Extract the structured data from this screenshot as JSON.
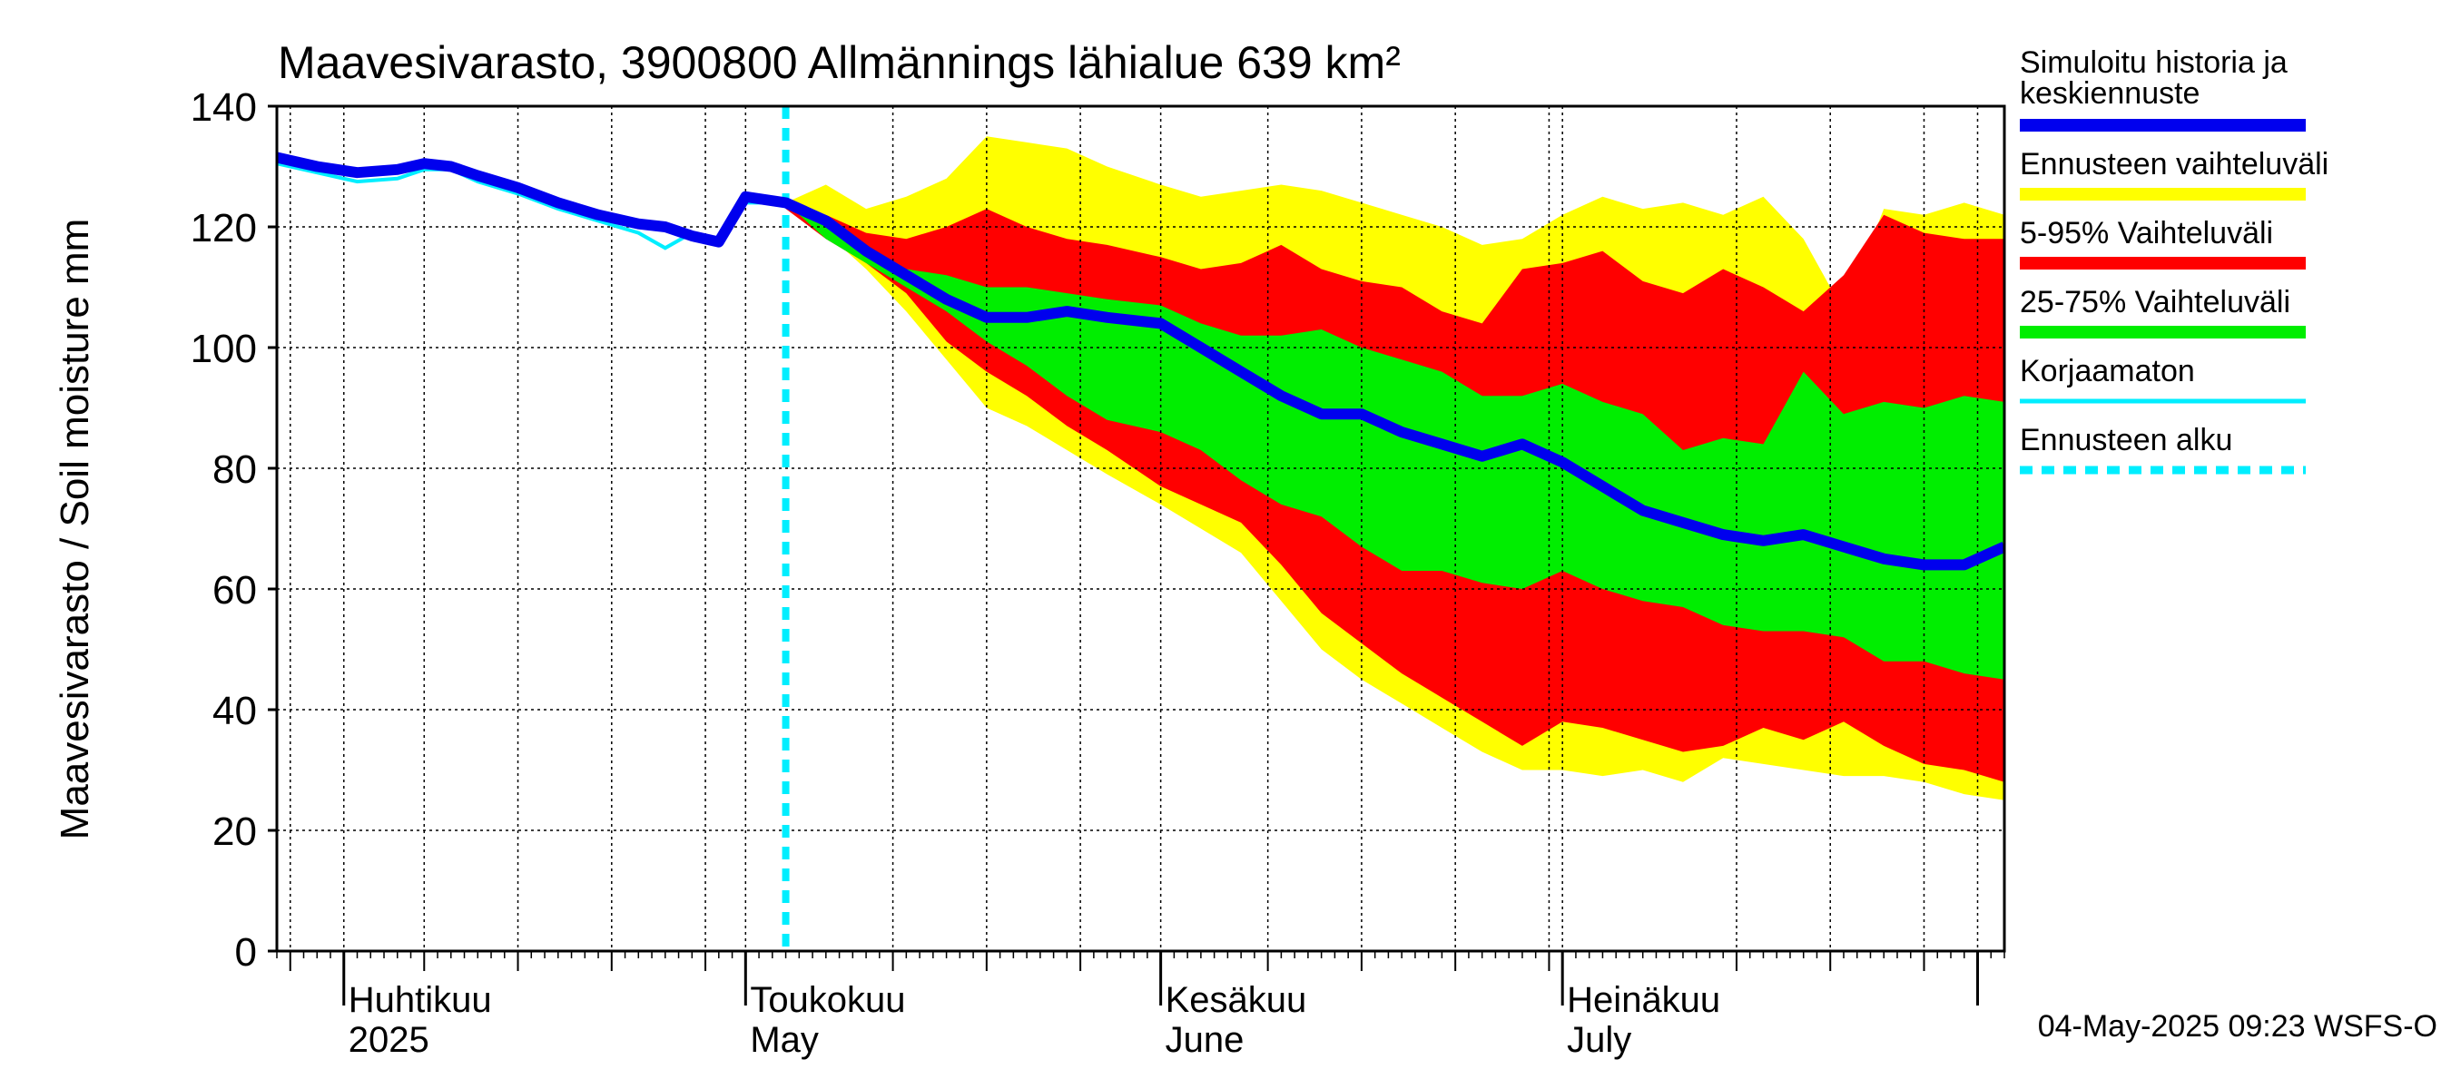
{
  "chart_data": {
    "type": "area",
    "title": "Maavesivarasto, 3900800 Allmännings lähialue 639 km²",
    "ylabel": "Maavesivarasto / Soil moisture   mm",
    "ylim": [
      0,
      140
    ],
    "yticks": [
      "0",
      "20",
      "40",
      "60",
      "80",
      "100",
      "120",
      "140"
    ],
    "xlim": [
      "2025-03-27",
      "2025-08-03"
    ],
    "forecast_start": "2025-05-04",
    "grid": true,
    "months": [
      {
        "date": "2025-04-01",
        "fi": "Huhtikuu",
        "en": "2025"
      },
      {
        "date": "2025-05-01",
        "fi": "Toukokuu",
        "en": "May"
      },
      {
        "date": "2025-06-01",
        "fi": "Kesäkuu",
        "en": "June"
      },
      {
        "date": "2025-07-01",
        "fi": "Heinäkuu",
        "en": "July"
      },
      {
        "date": "2025-08-01",
        "fi": "",
        "en": ""
      }
    ],
    "colors": {
      "history": "#0000ee",
      "uncorrected": "#00eeff",
      "range": "#ffff00",
      "p5_95": "#ff0000",
      "p25_75": "#00ee00",
      "forecast_start": "#00eeff"
    },
    "legend": [
      {
        "key": "history",
        "label": "Simuloitu historia ja",
        "label2": "keskiennuste",
        "color": "#0000ee",
        "style": "thick"
      },
      {
        "key": "range",
        "label": "Ennusteen vaihteluväli",
        "color": "#ffff00",
        "style": "thick"
      },
      {
        "key": "p5_95",
        "label": "5-95% Vaihteluväli",
        "color": "#ff0000",
        "style": "thick"
      },
      {
        "key": "p25_75",
        "label": "25-75% Vaihteluväli",
        "color": "#00ee00",
        "style": "thick"
      },
      {
        "key": "uncorrected",
        "label": "Korjaamaton",
        "color": "#00eeff",
        "style": "thin"
      },
      {
        "key": "forecast_start",
        "label": "Ennusteen alku",
        "color": "#00eeff",
        "style": "dashed"
      }
    ],
    "series": [
      {
        "name": "Simuloitu historia ja keskiennuste",
        "x": [
          "2025-03-27",
          "2025-03-30",
          "2025-04-02",
          "2025-04-05",
          "2025-04-07",
          "2025-04-09",
          "2025-04-11",
          "2025-04-14",
          "2025-04-17",
          "2025-04-20",
          "2025-04-23",
          "2025-04-25",
          "2025-04-27",
          "2025-04-29",
          "2025-05-01",
          "2025-05-04",
          "2025-05-07",
          "2025-05-10",
          "2025-05-13",
          "2025-05-16",
          "2025-05-19",
          "2025-05-22",
          "2025-05-25",
          "2025-05-28",
          "2025-06-01",
          "2025-06-04",
          "2025-06-07",
          "2025-06-10",
          "2025-06-13",
          "2025-06-16",
          "2025-06-19",
          "2025-06-22",
          "2025-06-25",
          "2025-06-28",
          "2025-07-01",
          "2025-07-04",
          "2025-07-07",
          "2025-07-10",
          "2025-07-13",
          "2025-07-16",
          "2025-07-19",
          "2025-07-22",
          "2025-07-25",
          "2025-07-28",
          "2025-07-31",
          "2025-08-03"
        ],
        "values": [
          131.5,
          130,
          129,
          129.5,
          130.5,
          130,
          128.5,
          126.5,
          124,
          122,
          120.5,
          120,
          118.5,
          117.5,
          125,
          124,
          121,
          116,
          112,
          108,
          105,
          105,
          106,
          105,
          104,
          100,
          96,
          92,
          89,
          89,
          86,
          84,
          82,
          84,
          81,
          77,
          73,
          71,
          69,
          68,
          69,
          67,
          65,
          64,
          64,
          67
        ]
      },
      {
        "name": "Korjaamaton",
        "x": [
          "2025-03-27",
          "2025-03-30",
          "2025-04-02",
          "2025-04-05",
          "2025-04-07",
          "2025-04-09",
          "2025-04-11",
          "2025-04-14",
          "2025-04-17",
          "2025-04-20",
          "2025-04-23",
          "2025-04-25",
          "2025-04-27",
          "2025-04-29",
          "2025-05-01",
          "2025-05-04"
        ],
        "values": [
          130.5,
          129,
          127.5,
          128,
          129.5,
          129.5,
          127.5,
          125.5,
          123,
          121,
          119,
          116.5,
          119,
          117,
          124,
          124
        ]
      }
    ],
    "bands": {
      "x": [
        "2025-05-04",
        "2025-05-07",
        "2025-05-10",
        "2025-05-13",
        "2025-05-16",
        "2025-05-19",
        "2025-05-22",
        "2025-05-25",
        "2025-05-28",
        "2025-06-01",
        "2025-06-04",
        "2025-06-07",
        "2025-06-10",
        "2025-06-13",
        "2025-06-16",
        "2025-06-19",
        "2025-06-22",
        "2025-06-25",
        "2025-06-28",
        "2025-07-01",
        "2025-07-04",
        "2025-07-07",
        "2025-07-10",
        "2025-07-13",
        "2025-07-16",
        "2025-07-19",
        "2025-07-22",
        "2025-07-25",
        "2025-07-28",
        "2025-07-31",
        "2025-08-03"
      ],
      "range_max": [
        124,
        127,
        123,
        125,
        128,
        135,
        134,
        133,
        130,
        127,
        125,
        126,
        127,
        126,
        124,
        122,
        120,
        117,
        118,
        122,
        125,
        123,
        124,
        122,
        125,
        118,
        106,
        123,
        122,
        124,
        122
      ],
      "range_min": [
        123,
        119,
        113,
        106,
        98,
        90,
        87,
        83,
        79,
        74,
        70,
        66,
        58,
        50,
        45,
        41,
        37,
        33,
        30,
        30,
        29,
        30,
        28,
        32,
        31,
        30,
        29,
        29,
        28,
        26,
        25
      ],
      "p95": [
        124,
        122,
        119,
        118,
        120,
        123,
        120,
        118,
        117,
        115,
        113,
        114,
        117,
        113,
        111,
        110,
        106,
        104,
        113,
        114,
        116,
        111,
        109,
        113,
        110,
        106,
        112,
        122,
        119,
        118,
        118
      ],
      "p5": [
        123,
        118,
        114,
        109,
        101,
        96,
        92,
        87,
        83,
        77,
        74,
        71,
        64,
        56,
        51,
        46,
        42,
        38,
        34,
        38,
        37,
        35,
        33,
        34,
        37,
        35,
        38,
        34,
        31,
        30,
        28
      ],
      "p75": [
        124,
        120,
        116,
        113,
        112,
        110,
        110,
        109,
        108,
        107,
        104,
        102,
        102,
        103,
        100,
        98,
        96,
        92,
        92,
        94,
        91,
        89,
        83,
        85,
        84,
        96,
        89,
        91,
        90,
        92,
        91
      ],
      "p25": [
        124,
        118,
        114,
        110,
        106,
        101,
        97,
        92,
        88,
        86,
        83,
        78,
        74,
        72,
        67,
        63,
        63,
        61,
        60,
        63,
        60,
        58,
        57,
        54,
        53,
        53,
        52,
        48,
        48,
        46,
        45
      ]
    }
  },
  "footer": {
    "timestamp": "04-May-2025 09:23 WSFS-O"
  }
}
